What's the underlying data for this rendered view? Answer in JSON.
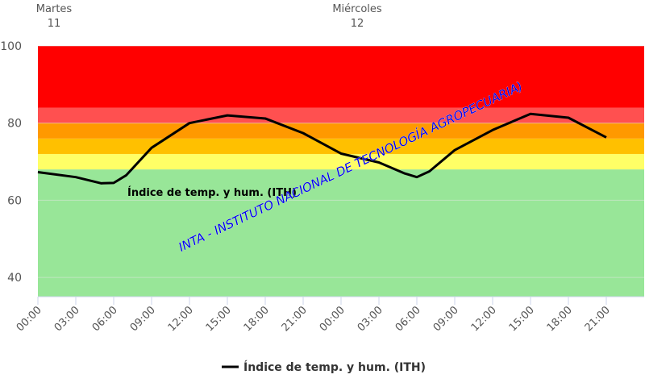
{
  "chart_data": {
    "type": "line",
    "top_labels": [
      {
        "day": "Martes",
        "date": "11",
        "hour": 0
      },
      {
        "day": "Miércoles",
        "date": "12",
        "hour": 24
      }
    ],
    "series": [
      {
        "name": "Índice de temp. y hum. (ITH)",
        "color": "#000000",
        "x": [
          0,
          3,
          5,
          6,
          7,
          9,
          12,
          15,
          18,
          21,
          24,
          27,
          29,
          30,
          31,
          33,
          36,
          39,
          42,
          45
        ],
        "values": [
          67.3,
          66,
          64.4,
          64.5,
          66.5,
          73.6,
          80,
          82,
          81.2,
          77.4,
          72.1,
          69.8,
          67,
          66,
          67.5,
          73,
          78.2,
          82.4,
          81.4,
          76.3
        ]
      }
    ],
    "bands": [
      {
        "from": 35,
        "to": 68,
        "color": "#98e698"
      },
      {
        "from": 68,
        "to": 72,
        "color": "#ffff66"
      },
      {
        "from": 72,
        "to": 76,
        "color": "#ffc000"
      },
      {
        "from": 76,
        "to": 80,
        "color": "#ff9900"
      },
      {
        "from": 80,
        "to": 84,
        "color": "#ff5050"
      },
      {
        "from": 84,
        "to": 100,
        "color": "#ff0000"
      }
    ],
    "annotations": [
      "Índice de temp. y hum. (ITH)",
      "INTA - INSTITUTO NACIONAL DE TECNOLOGÍA AGROPECUARIA)"
    ],
    "xlim": [
      0,
      48
    ],
    "xticks": [
      {
        "value": 0,
        "label": "00:00"
      },
      {
        "value": 3,
        "label": "03:00"
      },
      {
        "value": 6,
        "label": "06:00"
      },
      {
        "value": 9,
        "label": "09:00"
      },
      {
        "value": 12,
        "label": "12:00"
      },
      {
        "value": 15,
        "label": "15:00"
      },
      {
        "value": 18,
        "label": "18:00"
      },
      {
        "value": 21,
        "label": "21:00"
      },
      {
        "value": 24,
        "label": "00:00"
      },
      {
        "value": 27,
        "label": "03:00"
      },
      {
        "value": 30,
        "label": "06:00"
      },
      {
        "value": 33,
        "label": "09:00"
      },
      {
        "value": 36,
        "label": "12:00"
      },
      {
        "value": 39,
        "label": "15:00"
      },
      {
        "value": 42,
        "label": "18:00"
      },
      {
        "value": 45,
        "label": "21:00"
      }
    ],
    "ylim": [
      35,
      100
    ],
    "yticks": [
      40,
      60,
      80,
      100
    ],
    "grid": true
  }
}
